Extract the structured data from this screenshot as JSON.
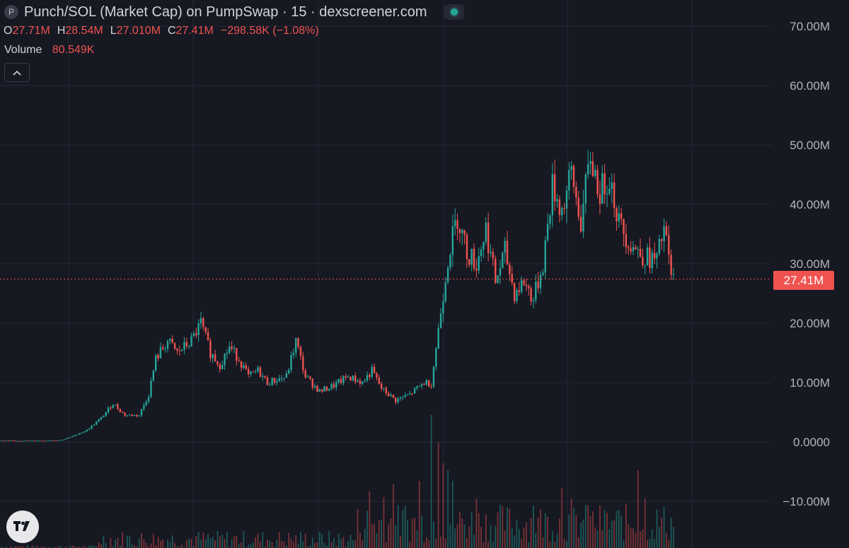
{
  "header": {
    "symbol_badge": "P",
    "title": "Punch/SOL (Market Cap) on PumpSwap · 15 · dexscreener.com",
    "status": "connected",
    "status_color": "#26a69a"
  },
  "ohlc": {
    "open_label": "O",
    "open": "27.71M",
    "high_label": "H",
    "high": "28.54M",
    "low_label": "L",
    "low": "27.010M",
    "close_label": "C",
    "close": "27.41M",
    "change": "−298.58K (−1.08%)"
  },
  "volume": {
    "label": "Volume",
    "value": "80.549K"
  },
  "collapse_icon": "chevron-up-icon",
  "logo_icon": "tradingview-logo",
  "last_price": {
    "label": "27.41M",
    "value": 27.41,
    "color": "#ef5350"
  },
  "colors": {
    "up": "#26a69a",
    "down": "#ef5350",
    "background": "#161822",
    "grid": "#262935"
  },
  "chart_data": {
    "type": "candlestick",
    "interval": "15",
    "y_unit": "M",
    "ylim": [
      -14,
      74
    ],
    "y_ticks": [
      {
        "value": 70,
        "label": "70.00M"
      },
      {
        "value": 60,
        "label": "60.00M"
      },
      {
        "value": 50,
        "label": "50.00M"
      },
      {
        "value": 40,
        "label": "40.00M"
      },
      {
        "value": 30,
        "label": "30.00M"
      },
      {
        "value": 20,
        "label": "20.00M"
      },
      {
        "value": 10,
        "label": "10.00M"
      },
      {
        "value": 0,
        "label": "0.0000"
      },
      {
        "value": -10,
        "label": "−10.00M"
      }
    ],
    "grid": true,
    "price_path": [
      [
        0,
        0.2
      ],
      [
        15,
        0.2
      ],
      [
        25,
        0.3
      ],
      [
        29,
        0.8
      ],
      [
        36,
        2
      ],
      [
        42,
        4
      ],
      [
        47,
        6.5
      ],
      [
        52,
        4.5
      ],
      [
        58,
        4.5
      ],
      [
        62,
        8
      ],
      [
        65,
        14
      ],
      [
        70,
        17
      ],
      [
        74,
        15
      ],
      [
        80,
        17
      ],
      [
        84,
        20
      ],
      [
        88,
        15
      ],
      [
        92,
        13
      ],
      [
        96,
        16
      ],
      [
        100,
        14
      ],
      [
        104,
        11
      ],
      [
        108,
        12
      ],
      [
        112,
        10
      ],
      [
        116,
        10.5
      ],
      [
        120,
        11
      ],
      [
        124,
        17
      ],
      [
        128,
        11
      ],
      [
        134,
        8.5
      ],
      [
        140,
        9.5
      ],
      [
        146,
        11
      ],
      [
        152,
        10
      ],
      [
        156,
        12
      ],
      [
        160,
        9
      ],
      [
        166,
        7
      ],
      [
        172,
        8
      ],
      [
        178,
        10
      ],
      [
        181,
        9.8
      ],
      [
        185,
        22
      ],
      [
        188,
        31
      ],
      [
        192,
        38
      ],
      [
        196,
        32
      ],
      [
        200,
        30
      ],
      [
        204,
        36
      ],
      [
        208,
        27
      ],
      [
        212,
        32
      ],
      [
        216,
        25
      ],
      [
        220,
        27
      ],
      [
        224,
        24
      ],
      [
        228,
        30
      ],
      [
        232,
        43
      ],
      [
        236,
        39
      ],
      [
        240,
        45
      ],
      [
        244,
        37
      ],
      [
        248,
        48
      ],
      [
        252,
        42
      ],
      [
        256,
        45
      ],
      [
        260,
        37
      ],
      [
        264,
        34
      ],
      [
        268,
        32
      ],
      [
        272,
        31
      ],
      [
        276,
        30.5
      ],
      [
        279,
        36
      ],
      [
        282,
        28
      ],
      [
        283,
        27.41
      ]
    ],
    "x_count": 284,
    "volume_bars": [
      [
        150,
        55
      ],
      [
        155,
        80
      ],
      [
        161,
        72
      ],
      [
        165,
        90
      ],
      [
        170,
        60
      ],
      [
        176,
        95
      ],
      [
        181,
        188
      ],
      [
        184,
        150
      ],
      [
        186,
        120
      ],
      [
        188,
        110
      ],
      [
        190,
        95
      ],
      [
        200,
        70
      ],
      [
        224,
        60
      ],
      [
        236,
        85
      ],
      [
        240,
        70
      ],
      [
        247,
        60
      ],
      [
        268,
        110
      ],
      [
        271,
        70
      ],
      [
        283,
        30
      ]
    ]
  }
}
